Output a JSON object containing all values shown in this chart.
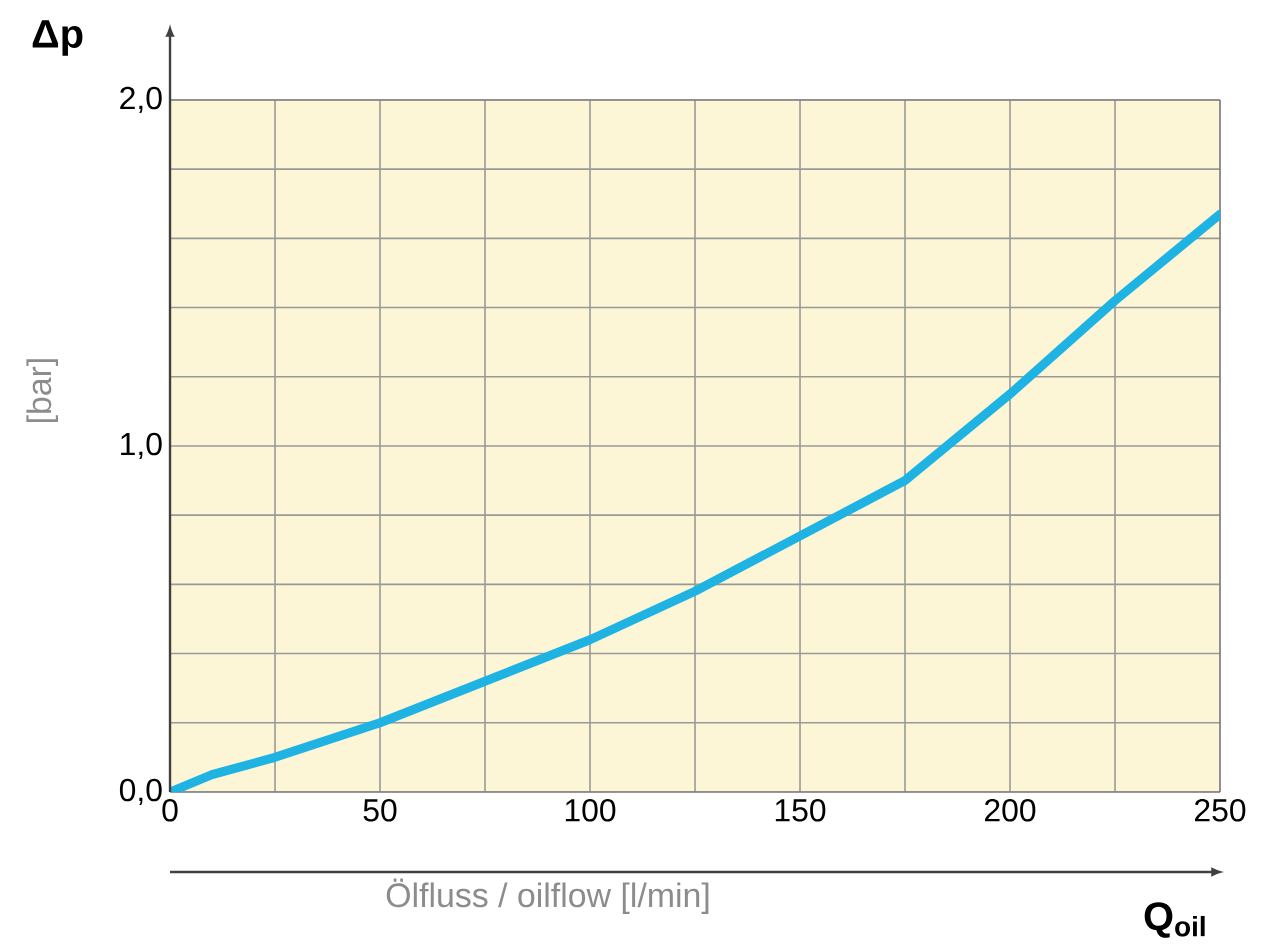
{
  "chart_data": {
    "type": "line",
    "xlabel": "Ölfluss / oilflow [l/min]",
    "ylabel": "[bar]",
    "annotations": [
      "Δp",
      "Q$_{oil}$"
    ],
    "x": [
      0,
      10,
      25,
      50,
      75,
      100,
      125,
      150,
      175,
      200,
      225,
      250
    ],
    "series": [
      {
        "color": "#1fb3e3",
        "values": [
          0,
          0.05,
          0.1,
          0.2,
          0.32,
          0.44,
          0.58,
          0.74,
          0.9,
          1.15,
          1.42,
          1.67
        ]
      }
    ],
    "xlim": [
      0,
      250
    ],
    "xticks": [
      0,
      {
        "value": 25,
        "label": null
      },
      50,
      {
        "value": 75,
        "label": null
      },
      100,
      {
        "value": 125,
        "label": null
      },
      150,
      {
        "value": 175,
        "label": null
      },
      200,
      {
        "value": 225,
        "label": null
      },
      250
    ],
    "ylim": [
      0,
      2
    ],
    "yticks": [
      {
        "value": 0,
        "label": "0,0"
      },
      {
        "value": 0.2,
        "label": null
      },
      {
        "value": 0.4,
        "label": null
      },
      {
        "value": 0.6,
        "label": null
      },
      {
        "value": 0.8,
        "label": null
      },
      {
        "value": 1.0,
        "label": "1,0"
      },
      {
        "value": 1.2,
        "label": null
      },
      {
        "value": 1.4,
        "label": null
      },
      {
        "value": 1.6,
        "label": null
      },
      {
        "value": 1.8,
        "label": null
      },
      {
        "value": 2.0,
        "label": "2,0"
      }
    ],
    "grid": true,
    "marker": "none",
    "line_style": "solid"
  }
}
